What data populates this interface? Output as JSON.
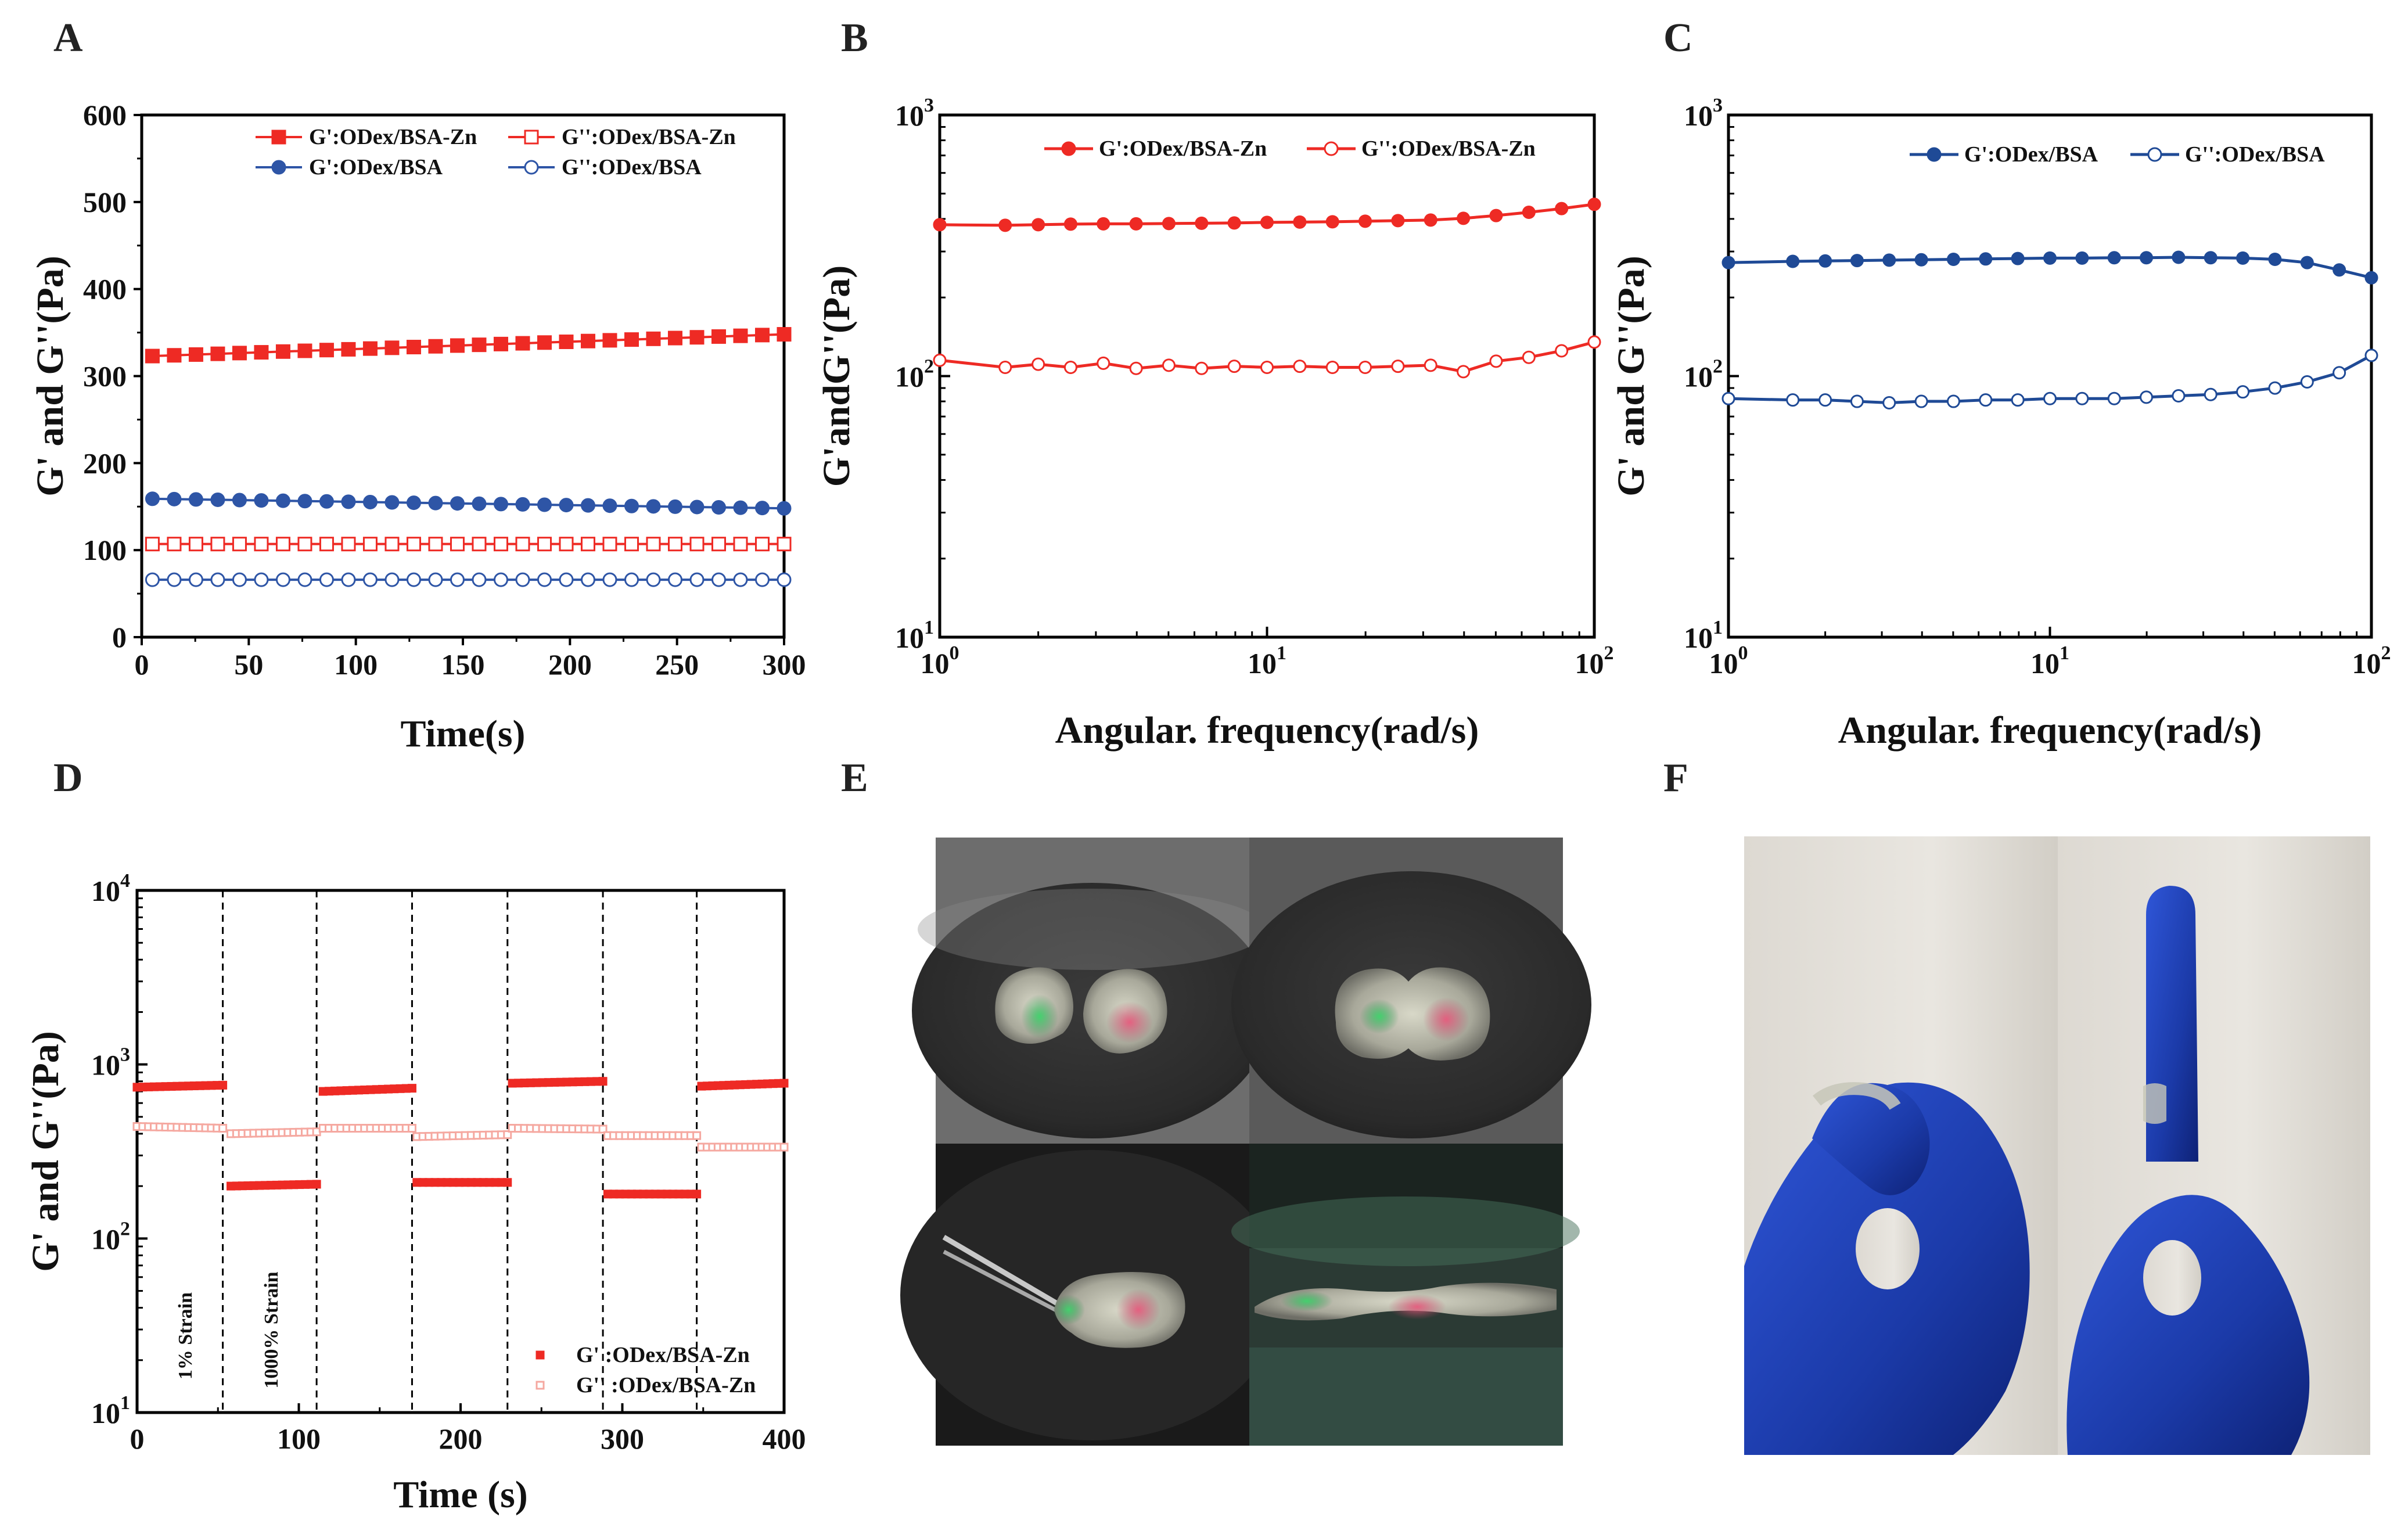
{
  "panels": {
    "A": "A",
    "B": "B",
    "C": "C",
    "D": "D",
    "E": "E",
    "F": "F"
  },
  "colors": {
    "red": "#ee2a24",
    "blue": "#2e55a6",
    "navy": "#1f4a96",
    "pink": "#f5a8a0"
  },
  "chart_data": [
    {
      "id": "A",
      "type": "line",
      "xlabel": "Time(s)",
      "ylabel": "G' and G''(Pa)",
      "xlim": [
        0,
        300
      ],
      "ylim": [
        0,
        600
      ],
      "xticks": [
        0,
        50,
        100,
        150,
        200,
        250,
        300
      ],
      "yticks": [
        0,
        100,
        200,
        300,
        400,
        500,
        600
      ],
      "series": [
        {
          "name": "G':ODex/BSA-Zn",
          "marker": "square",
          "filled": true,
          "color": "#ee2a24",
          "x_start": 5,
          "x_end": 300,
          "y_start": 323,
          "y_end": 348,
          "points": 30
        },
        {
          "name": "G'':ODex/BSA-Zn",
          "marker": "square",
          "filled": false,
          "color": "#ee2a24",
          "x_start": 5,
          "x_end": 300,
          "y_start": 107,
          "y_end": 107,
          "points": 30
        },
        {
          "name": "G':ODex/BSA",
          "marker": "circle",
          "filled": true,
          "color": "#2e55a6",
          "x_start": 5,
          "x_end": 300,
          "y_start": 159,
          "y_end": 148,
          "points": 30
        },
        {
          "name": "G'':ODex/BSA",
          "marker": "circle",
          "filled": false,
          "color": "#2e55a6",
          "x_start": 5,
          "x_end": 300,
          "y_start": 66,
          "y_end": 66,
          "points": 30
        }
      ]
    },
    {
      "id": "B",
      "type": "line",
      "xscale": "log",
      "yscale": "log",
      "xlabel": "Angular. frequency(rad/s)",
      "ylabel": "G'andG''(Pa)",
      "xlim": [
        1,
        100
      ],
      "ylim": [
        10,
        1000
      ],
      "xticks": [
        {
          "base": "10",
          "exp": "0"
        },
        {
          "base": "10",
          "exp": "1"
        },
        {
          "base": "10",
          "exp": "2"
        }
      ],
      "yticks": [
        {
          "base": "10",
          "exp": "1"
        },
        {
          "base": "10",
          "exp": "2"
        },
        {
          "base": "10",
          "exp": "3"
        }
      ],
      "x": [
        1,
        1.585,
        2,
        2.512,
        3.162,
        3.981,
        5.012,
        6.31,
        7.943,
        10,
        12.59,
        15.85,
        19.95,
        25.12,
        31.62,
        39.81,
        50.12,
        63.1,
        79.43,
        100
      ],
      "series": [
        {
          "name": "G':ODex/BSA-Zn",
          "marker": "circle",
          "filled": true,
          "color": "#ee2a24",
          "values": [
            380,
            378,
            380,
            382,
            383,
            383,
            384,
            385,
            386,
            388,
            389,
            390,
            392,
            394,
            396,
            402,
            412,
            424,
            438,
            455
          ]
        },
        {
          "name": "G'':ODex/BSA-Zn",
          "marker": "circle",
          "filled": false,
          "color": "#ee2a24",
          "values": [
            115,
            108,
            111,
            108,
            112,
            107,
            110,
            107,
            109,
            108,
            109,
            108,
            108,
            109,
            110,
            104,
            114,
            118,
            125,
            135
          ]
        }
      ]
    },
    {
      "id": "C",
      "type": "line",
      "xscale": "log",
      "yscale": "log",
      "xlabel": "Angular. frequency(rad/s)",
      "ylabel": "G' and G''(Pa)",
      "xlim": [
        1,
        100
      ],
      "ylim": [
        10,
        1000
      ],
      "xticks": [
        {
          "base": "10",
          "exp": "0"
        },
        {
          "base": "10",
          "exp": "1"
        },
        {
          "base": "10",
          "exp": "2"
        }
      ],
      "yticks": [
        {
          "base": "10",
          "exp": "1"
        },
        {
          "base": "10",
          "exp": "2"
        },
        {
          "base": "10",
          "exp": "3"
        }
      ],
      "x": [
        1,
        1.585,
        2,
        2.512,
        3.162,
        3.981,
        5.012,
        6.31,
        7.943,
        10,
        12.59,
        15.85,
        19.95,
        25.12,
        31.62,
        39.81,
        50.12,
        63.1,
        79.43,
        100
      ],
      "series": [
        {
          "name": "G':ODex/BSA",
          "marker": "circle",
          "filled": true,
          "color": "#1f4a96",
          "values": [
            272,
            275,
            276,
            277,
            278,
            279,
            280,
            281,
            282,
            283,
            283,
            284,
            284,
            285,
            284,
            283,
            280,
            272,
            255,
            238
          ]
        },
        {
          "name": "G'':ODex/BSA",
          "marker": "circle",
          "filled": false,
          "color": "#1f4a96",
          "values": [
            82,
            81,
            81,
            80,
            79,
            80,
            80,
            81,
            81,
            82,
            82,
            82,
            83,
            84,
            85,
            87,
            90,
            95,
            103,
            120
          ]
        }
      ]
    },
    {
      "id": "D",
      "type": "scatter",
      "yscale": "log",
      "xlabel": "Time (s)",
      "ylabel": "G' and G''(Pa)",
      "xlim": [
        0,
        400
      ],
      "ylim": [
        10,
        10000
      ],
      "xticks": [
        0,
        100,
        200,
        300,
        400
      ],
      "yticks": [
        {
          "base": "10",
          "exp": "1"
        },
        {
          "base": "10",
          "exp": "2"
        },
        {
          "base": "10",
          "exp": "3"
        },
        {
          "base": "10",
          "exp": "4"
        }
      ],
      "dividers": [
        53,
        111,
        170,
        229,
        288,
        346
      ],
      "annotations": [
        "1% Strain",
        "1000% Strain"
      ],
      "segments": [
        {
          "x0": 0,
          "x1": 53,
          "g1": [
            740,
            760
          ],
          "g2": [
            440,
            430
          ]
        },
        {
          "x0": 58,
          "x1": 111,
          "g1": [
            200,
            205
          ],
          "g2": [
            400,
            410
          ]
        },
        {
          "x0": 115,
          "x1": 170,
          "g1": [
            700,
            730
          ],
          "g2": [
            430,
            430
          ]
        },
        {
          "x0": 173,
          "x1": 229,
          "g1": [
            210,
            210
          ],
          "g2": [
            385,
            395
          ]
        },
        {
          "x0": 232,
          "x1": 288,
          "g1": [
            780,
            800
          ],
          "g2": [
            430,
            425
          ]
        },
        {
          "x0": 291,
          "x1": 346,
          "g1": [
            180,
            180
          ],
          "g2": [
            390,
            390
          ]
        },
        {
          "x0": 349,
          "x1": 400,
          "g1": [
            750,
            780
          ],
          "g2": [
            335,
            335
          ]
        }
      ],
      "series": [
        {
          "name": "G' :ODex/BSA-Zn",
          "marker": "square",
          "filled": true,
          "color": "#ee2a24"
        },
        {
          "name": "G'' :ODex/BSA-Zn",
          "marker": "square",
          "filled": false,
          "color": "#f5a8a0"
        }
      ]
    }
  ],
  "photos": {
    "E": {
      "description_tag": "hydrogel-self-healing-photos"
    },
    "F": {
      "description_tag": "hydrogel-on-gloved-finger-photos"
    }
  }
}
